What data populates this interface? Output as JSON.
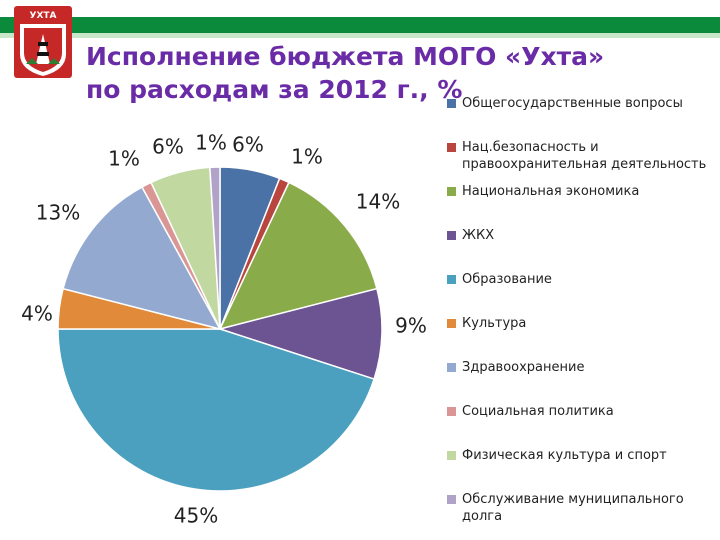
{
  "header": {
    "crest_text": "УХТА",
    "title": "Исполнение бюджета МОГО «Ухта» по расходам за 2012 г., %"
  },
  "chart_data": {
    "type": "pie",
    "title": "Исполнение бюджета МОГО «Ухта» по расходам за 2012 г., %",
    "categories": [
      "Общегосударственные вопросы",
      "Нац.безопасность и правоохранительная деятельность",
      "Национальная экономика",
      "ЖКХ",
      "Образование",
      "Культура",
      "Здравоохранение",
      "Социальная политика",
      "Физическая культура и спорт",
      "Обслуживание муниципального долга"
    ],
    "values": [
      6,
      1,
      14,
      9,
      45,
      4,
      13,
      1,
      6,
      1
    ],
    "labels": [
      "6%",
      "1%",
      "14%",
      "9%",
      "45%",
      "4%",
      "13%",
      "1%",
      "6%",
      "1%"
    ],
    "colors": [
      "#4a72a6",
      "#b8463f",
      "#8aab4a",
      "#6c5392",
      "#4aa0be",
      "#e08a3a",
      "#94a9cf",
      "#d99694",
      "#c1d8a1",
      "#b1a2c8"
    ],
    "legend_position": "right"
  }
}
